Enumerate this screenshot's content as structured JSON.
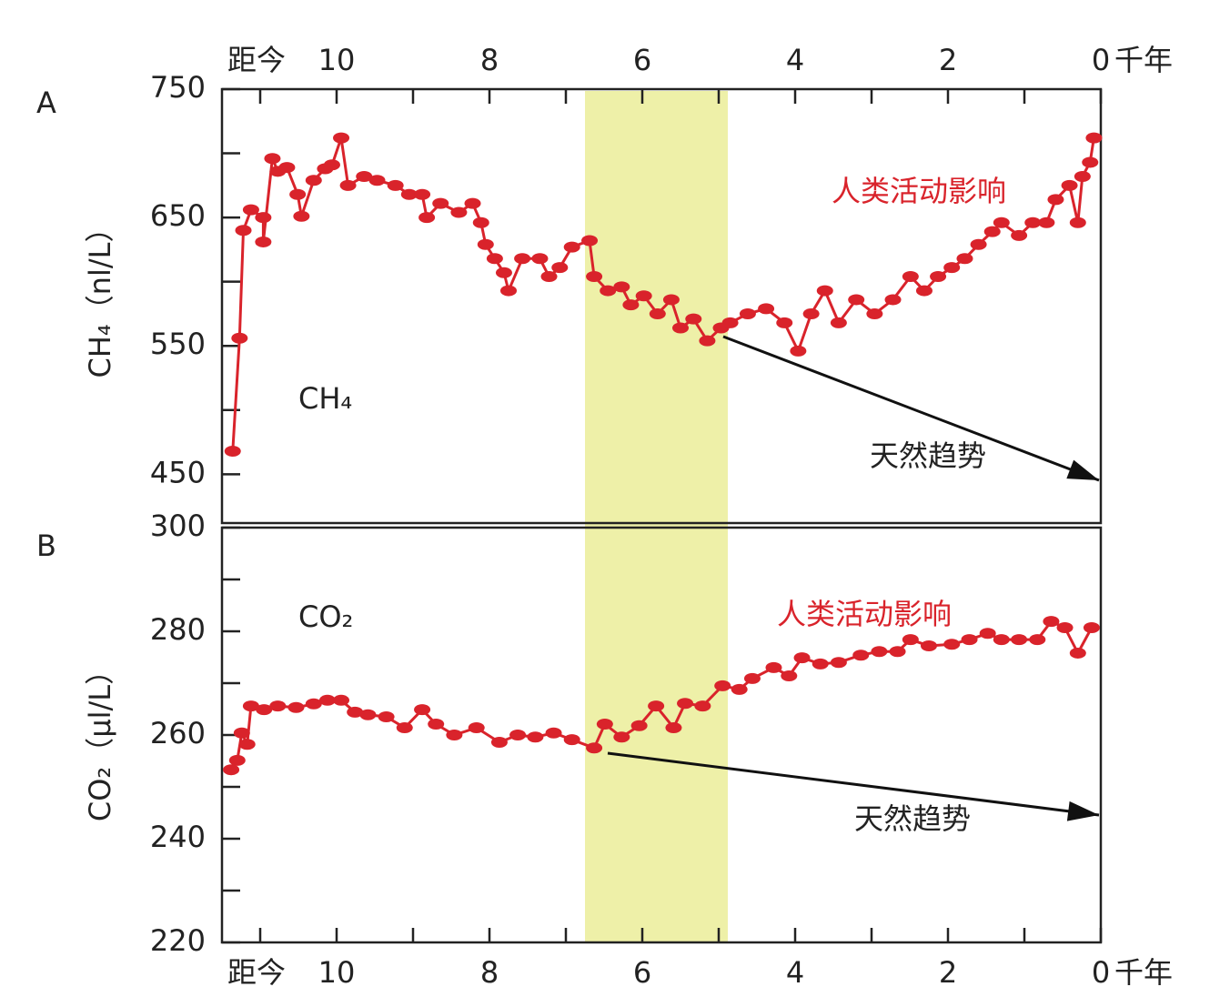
{
  "chart_data": [
    {
      "type": "line",
      "panel": "A",
      "series_name": "CH₄",
      "ylabel": "CH₄（nl/L）",
      "x_axis": "top",
      "x_prefix": "距今",
      "x_unit": "千年",
      "annotations": [
        "人类活动影响",
        "天然趋势"
      ],
      "color": "#d9232b",
      "xlim": [
        11.5,
        0
      ],
      "xticks": [
        10,
        8,
        6,
        4,
        2,
        0
      ],
      "xminor": [
        11,
        9,
        7,
        5,
        3,
        1
      ],
      "ylim": [
        412,
        750
      ],
      "yticks": [
        450,
        550,
        650,
        750
      ],
      "yminor": [
        500,
        600,
        700
      ],
      "x": [
        11.36,
        11.27,
        11.22,
        11.12,
        10.96,
        10.96,
        10.84,
        10.77,
        10.65,
        10.51,
        10.46,
        10.3,
        10.15,
        10.06,
        9.94,
        9.85,
        9.64,
        9.47,
        9.23,
        9.05,
        8.88,
        8.82,
        8.64,
        8.4,
        8.22,
        8.11,
        8.05,
        7.93,
        7.81,
        7.75,
        7.57,
        7.34,
        7.22,
        7.08,
        6.92,
        6.69,
        6.63,
        6.45,
        6.27,
        6.15,
        5.98,
        5.8,
        5.62,
        5.5,
        5.33,
        5.15,
        4.97,
        4.85,
        4.62,
        4.38,
        4.14,
        3.96,
        3.79,
        3.61,
        3.43,
        3.2,
        2.96,
        2.72,
        2.49,
        2.31,
        2.13,
        1.95,
        1.78,
        1.6,
        1.42,
        1.3,
        1.07,
        0.89,
        0.71,
        0.59,
        0.41,
        0.3,
        0.24,
        0.14,
        0.09
      ],
      "values": [
        468,
        556,
        640,
        656,
        650,
        631,
        696,
        686,
        689,
        668,
        651,
        679,
        688,
        691,
        712,
        675,
        682,
        679,
        675,
        668,
        668,
        650,
        661,
        654,
        661,
        646,
        629,
        618,
        607,
        593,
        618,
        618,
        604,
        611,
        627,
        632,
        604,
        593,
        596,
        582,
        589,
        575,
        586,
        564,
        571,
        554,
        564,
        568,
        575,
        579,
        568,
        546,
        575,
        593,
        568,
        586,
        575,
        586,
        604,
        593,
        604,
        611,
        618,
        629,
        639,
        646,
        636,
        646,
        646,
        664,
        675,
        646,
        682,
        693,
        712
      ]
    },
    {
      "type": "line",
      "panel": "B",
      "series_name": "CO₂",
      "ylabel": "CO₂（μl/L）",
      "x_axis": "bottom",
      "x_prefix": "距今",
      "x_unit": "千年",
      "annotations": [
        "人类活动影响",
        "天然趋势"
      ],
      "color": "#d9232b",
      "xlim": [
        11.5,
        0
      ],
      "xticks": [
        10,
        8,
        6,
        4,
        2,
        0
      ],
      "xminor": [
        11,
        9,
        7,
        5,
        3,
        1
      ],
      "ylim": [
        220,
        300
      ],
      "yticks": [
        220,
        240,
        260,
        280,
        300
      ],
      "yminor": [
        230,
        250,
        270,
        290
      ],
      "x": [
        11.38,
        11.3,
        11.24,
        11.17,
        11.12,
        10.95,
        10.77,
        10.53,
        10.3,
        10.12,
        9.94,
        9.76,
        9.59,
        9.35,
        9.11,
        8.88,
        8.7,
        8.46,
        8.17,
        7.87,
        7.63,
        7.4,
        7.16,
        6.92,
        6.63,
        6.49,
        6.27,
        6.04,
        5.82,
        5.59,
        5.44,
        5.21,
        4.95,
        4.73,
        4.56,
        4.28,
        4.08,
        3.91,
        3.67,
        3.43,
        3.14,
        2.9,
        2.66,
        2.49,
        2.25,
        1.95,
        1.72,
        1.48,
        1.3,
        1.07,
        0.83,
        0.65,
        0.47,
        0.3,
        0.12
      ],
      "values": [
        253.3,
        255.1,
        260.4,
        258.2,
        265.6,
        264.9,
        265.6,
        265.3,
        266,
        266.7,
        266.7,
        264.4,
        263.9,
        263.5,
        261.4,
        264.9,
        262.1,
        260,
        261.4,
        258.6,
        260,
        259.6,
        260.4,
        259.1,
        257.5,
        262.1,
        259.6,
        261.8,
        265.6,
        261.4,
        266.1,
        265.6,
        269.5,
        268.8,
        270.9,
        273,
        271.4,
        274.9,
        273.7,
        274,
        275.4,
        276.1,
        276.1,
        278.4,
        277.2,
        277.5,
        278.4,
        279.6,
        278.4,
        278.4,
        278.4,
        281.9,
        280.7,
        275.8,
        280.7
      ]
    }
  ]
}
